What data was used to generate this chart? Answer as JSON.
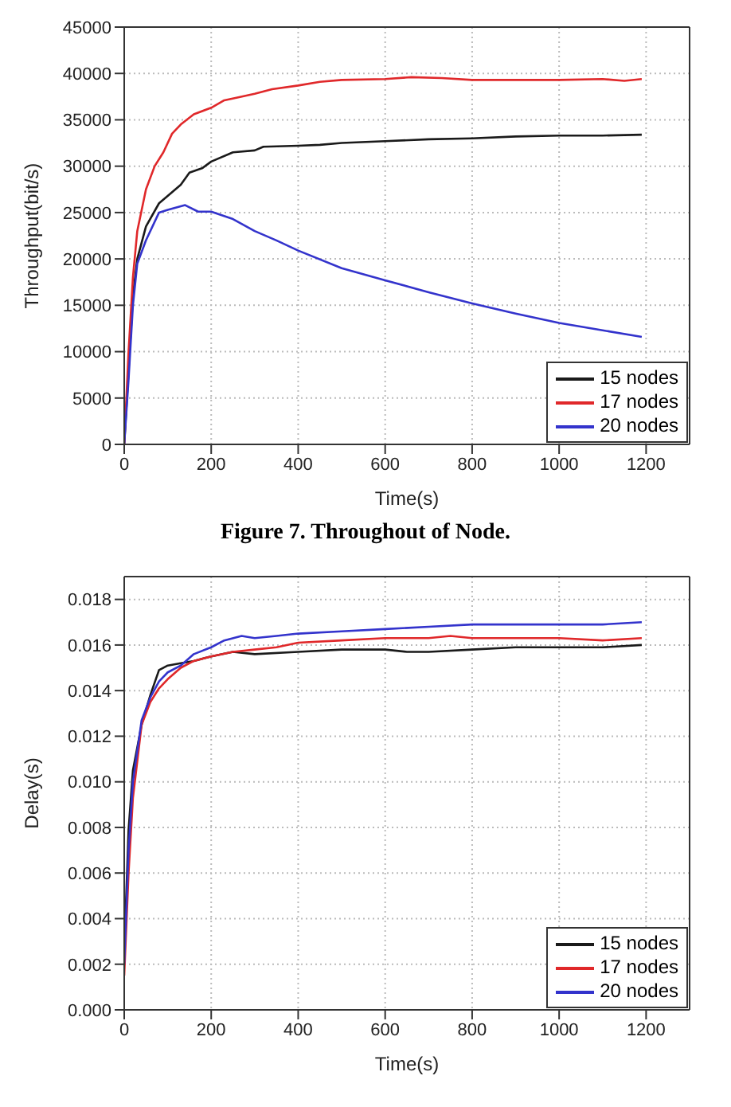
{
  "chart_data": [
    {
      "type": "line",
      "xlabel": "Time(s)",
      "ylabel": "Throughput(bit/s)",
      "annotations": [
        "Figure 7. Throughout of Node."
      ],
      "xlim": [
        0,
        1300
      ],
      "xticks": [
        0,
        200,
        400,
        600,
        800,
        1000,
        1200
      ],
      "ylim": [
        0,
        45000
      ],
      "yticks": [
        0,
        5000,
        10000,
        15000,
        20000,
        25000,
        30000,
        35000,
        40000,
        45000
      ],
      "grid": true,
      "legend": "bottom right",
      "marker": "none",
      "line_style": "solid",
      "series": [
        {
          "name": "15 nodes",
          "color": "#1a1a1a",
          "x": [
            0,
            10,
            20,
            30,
            50,
            80,
            100,
            130,
            150,
            180,
            200,
            250,
            300,
            320,
            400,
            450,
            500,
            600,
            700,
            800,
            900,
            1000,
            1100,
            1190
          ],
          "values": [
            0,
            8000,
            16000,
            20000,
            23500,
            26000,
            26800,
            28000,
            29300,
            29800,
            30500,
            31500,
            31700,
            32100,
            32200,
            32300,
            32500,
            32700,
            32900,
            33000,
            33200,
            33300,
            33300,
            33400
          ]
        },
        {
          "name": "17 nodes",
          "color": "#e0282a",
          "x": [
            0,
            10,
            20,
            30,
            50,
            70,
            90,
            110,
            130,
            160,
            200,
            230,
            260,
            300,
            340,
            400,
            450,
            500,
            600,
            660,
            730,
            800,
            900,
            1000,
            1100,
            1150,
            1190
          ],
          "values": [
            0,
            10000,
            18000,
            23000,
            27500,
            30000,
            31500,
            33500,
            34500,
            35600,
            36300,
            37100,
            37400,
            37800,
            38300,
            38700,
            39100,
            39300,
            39400,
            39600,
            39500,
            39300,
            39300,
            39300,
            39400,
            39200,
            39400
          ]
        },
        {
          "name": "20 nodes",
          "color": "#3333cc",
          "x": [
            0,
            10,
            20,
            30,
            50,
            80,
            100,
            140,
            170,
            200,
            250,
            300,
            350,
            400,
            500,
            600,
            700,
            800,
            900,
            1000,
            1100,
            1190
          ],
          "values": [
            0,
            7000,
            15000,
            19500,
            22000,
            25000,
            25300,
            25800,
            25100,
            25100,
            24300,
            23000,
            22000,
            20900,
            19000,
            17700,
            16400,
            15200,
            14100,
            13100,
            12300,
            11600
          ]
        }
      ]
    },
    {
      "type": "line",
      "xlabel": "Time(s)",
      "ylabel": "Delay(s)",
      "xlim": [
        0,
        1300
      ],
      "xticks": [
        0,
        200,
        400,
        600,
        800,
        1000,
        1200
      ],
      "ylim": [
        0,
        0.019
      ],
      "yticks": [
        {
          "value": 0,
          "label": "0.000"
        },
        {
          "value": 0.002,
          "label": "0.002"
        },
        {
          "value": 0.004,
          "label": "0.004"
        },
        {
          "value": 0.006,
          "label": "0.006"
        },
        {
          "value": 0.008,
          "label": "0.008"
        },
        {
          "value": 0.01,
          "label": "0.010"
        },
        {
          "value": 0.012,
          "label": "0.012"
        },
        {
          "value": 0.014,
          "label": "0.014"
        },
        {
          "value": 0.016,
          "label": "0.016"
        },
        {
          "value": 0.018,
          "label": "0.018"
        }
      ],
      "grid": true,
      "legend": "bottom right",
      "marker": "none",
      "line_style": "solid",
      "series": [
        {
          "name": "15 nodes",
          "color": "#1a1a1a",
          "x": [
            0,
            10,
            20,
            40,
            60,
            80,
            100,
            130,
            160,
            200,
            250,
            300,
            400,
            500,
            600,
            650,
            700,
            800,
            900,
            1000,
            1100,
            1190
          ],
          "values": [
            0.0025,
            0.0079,
            0.0105,
            0.0125,
            0.0138,
            0.0149,
            0.0151,
            0.0152,
            0.0153,
            0.0155,
            0.0157,
            0.0156,
            0.0157,
            0.0158,
            0.0158,
            0.0157,
            0.0157,
            0.0158,
            0.0159,
            0.0159,
            0.0159,
            0.016
          ]
        },
        {
          "name": "17 nodes",
          "color": "#e0282a",
          "x": [
            0,
            10,
            20,
            40,
            60,
            80,
            100,
            130,
            160,
            200,
            250,
            300,
            350,
            400,
            500,
            600,
            700,
            750,
            800,
            900,
            1000,
            1100,
            1190
          ],
          "values": [
            0.0015,
            0.006,
            0.0093,
            0.0125,
            0.0135,
            0.0141,
            0.0145,
            0.015,
            0.0153,
            0.0155,
            0.0157,
            0.0158,
            0.0159,
            0.0161,
            0.0162,
            0.0163,
            0.0163,
            0.0164,
            0.0163,
            0.0163,
            0.0163,
            0.0162,
            0.0163
          ]
        },
        {
          "name": "20 nodes",
          "color": "#3333cc",
          "x": [
            0,
            10,
            20,
            40,
            60,
            80,
            100,
            130,
            160,
            200,
            230,
            270,
            300,
            350,
            400,
            500,
            600,
            700,
            800,
            900,
            1000,
            1100,
            1190
          ],
          "values": [
            0.002,
            0.007,
            0.01,
            0.0127,
            0.0137,
            0.0144,
            0.0148,
            0.0151,
            0.0156,
            0.0159,
            0.0162,
            0.0164,
            0.0163,
            0.0164,
            0.0165,
            0.0166,
            0.0167,
            0.0168,
            0.0169,
            0.0169,
            0.0169,
            0.0169,
            0.017
          ]
        }
      ]
    }
  ]
}
